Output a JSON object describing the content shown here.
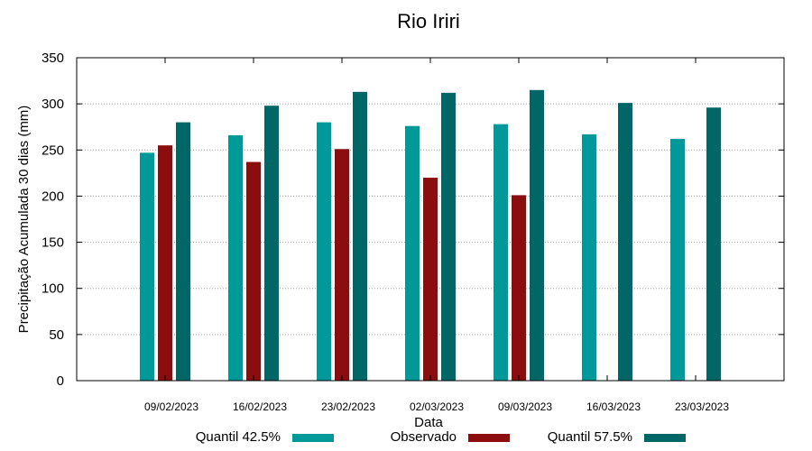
{
  "chart_data": {
    "type": "bar",
    "title": "Rio Iriri",
    "xlabel": "Data",
    "ylabel": "Precipitação Acumulada 30 dias (mm)",
    "ylim": [
      0,
      350
    ],
    "yticks": [
      0,
      50,
      100,
      150,
      200,
      250,
      300,
      350
    ],
    "grid": true,
    "legend_position": "bottom",
    "categories": [
      "09/02/2023",
      "16/02/2023",
      "23/02/2023",
      "02/03/2023",
      "09/03/2023",
      "16/03/2023",
      "23/03/2023"
    ],
    "series": [
      {
        "name": "Quantil 42.5%",
        "color": "#009999",
        "values": [
          247,
          266,
          280,
          276,
          278,
          267,
          262
        ]
      },
      {
        "name": "Observado",
        "color": "#8b0d0d",
        "values": [
          255,
          237,
          251,
          220,
          201,
          null,
          null
        ]
      },
      {
        "name": "Quantil 57.5%",
        "color": "#006666",
        "values": [
          280,
          298,
          313,
          312,
          315,
          301,
          296
        ]
      }
    ]
  }
}
